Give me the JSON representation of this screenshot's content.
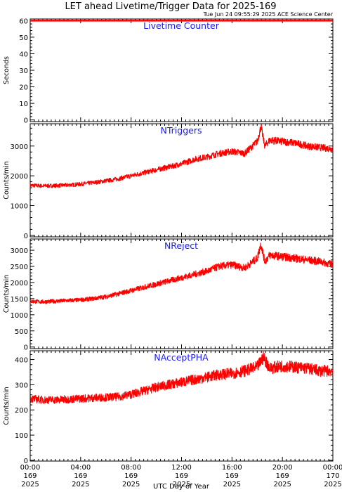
{
  "header": {
    "title": "LET ahead Livetime/Trigger Data for 2025-169",
    "timestamp": "Tue Jun 24 09:55:29 2025 ACE Science Center"
  },
  "x_axis": {
    "label": "UTC Day of Year",
    "ticks": [
      {
        "hour": 0,
        "lines": [
          "00:00",
          "169",
          "2025"
        ]
      },
      {
        "hour": 4,
        "lines": [
          "04:00",
          "169",
          "2025"
        ]
      },
      {
        "hour": 8,
        "lines": [
          "08:00",
          "169",
          "2025"
        ]
      },
      {
        "hour": 12,
        "lines": [
          "12:00",
          "169",
          "2025"
        ]
      },
      {
        "hour": 16,
        "lines": [
          "16:00",
          "169",
          "2025"
        ]
      },
      {
        "hour": 20,
        "lines": [
          "20:00",
          "169",
          "2025"
        ]
      },
      {
        "hour": 24,
        "lines": [
          "00:00",
          "170",
          "2025"
        ]
      }
    ]
  },
  "colors": {
    "series": "#ff0000",
    "panel_title": "#1a1aff",
    "axes": "#000000"
  },
  "chart_data": [
    {
      "type": "line",
      "title": "Livetime Counter",
      "ylabel": "Seconds",
      "ylim": [
        -1,
        61
      ],
      "yticks": [
        0,
        10,
        20,
        30,
        40,
        50,
        60
      ],
      "x": [
        0,
        24
      ],
      "values": [
        60,
        60
      ],
      "xlim": [
        0,
        24
      ]
    },
    {
      "type": "line",
      "title": "NTriggers",
      "ylabel": "Counts/min",
      "ylim": [
        -50,
        3750
      ],
      "yticks": [
        0,
        1000,
        2000,
        3000
      ],
      "xlim": [
        0,
        24
      ],
      "x": [
        0,
        1,
        2,
        3,
        4,
        5,
        6,
        7,
        8,
        9,
        10,
        11,
        12,
        13,
        14,
        15,
        16,
        17,
        17.5,
        18,
        18.3,
        18.6,
        19,
        20,
        21,
        22,
        23,
        24
      ],
      "values": [
        1680,
        1660,
        1670,
        1690,
        1720,
        1770,
        1830,
        1900,
        2000,
        2100,
        2200,
        2300,
        2400,
        2550,
        2630,
        2750,
        2820,
        2750,
        2950,
        3150,
        3650,
        3000,
        3200,
        3150,
        3100,
        3000,
        2950,
        2900
      ]
    },
    {
      "type": "line",
      "title": "NReject",
      "ylabel": "Counts/min",
      "ylim": [
        -50,
        3350
      ],
      "yticks": [
        0,
        500,
        1000,
        1500,
        2000,
        2500,
        3000
      ],
      "xlim": [
        0,
        24
      ],
      "x": [
        0,
        1,
        2,
        3,
        4,
        5,
        6,
        7,
        8,
        9,
        10,
        11,
        12,
        13,
        14,
        15,
        16,
        17,
        17.5,
        18,
        18.3,
        18.6,
        19,
        20,
        21,
        22,
        23,
        24
      ],
      "values": [
        1420,
        1400,
        1420,
        1440,
        1460,
        1500,
        1560,
        1650,
        1750,
        1850,
        1950,
        2050,
        2150,
        2250,
        2350,
        2500,
        2550,
        2450,
        2600,
        2750,
        3200,
        2650,
        2850,
        2800,
        2750,
        2700,
        2650,
        2550
      ]
    },
    {
      "type": "line",
      "title": "NAcceptPHA",
      "ylabel": "Counts/min",
      "ylim": [
        -3,
        435
      ],
      "yticks": [
        0,
        100,
        200,
        300,
        400
      ],
      "xlim": [
        0,
        24
      ],
      "x": [
        0,
        1,
        2,
        3,
        4,
        5,
        6,
        7,
        8,
        9,
        10,
        11,
        12,
        13,
        14,
        15,
        16,
        17,
        18,
        18.5,
        19,
        20,
        21,
        22,
        23,
        24
      ],
      "values": [
        245,
        240,
        240,
        242,
        245,
        248,
        250,
        252,
        262,
        275,
        290,
        300,
        310,
        320,
        330,
        340,
        345,
        355,
        370,
        410,
        365,
        375,
        370,
        365,
        355,
        355
      ]
    }
  ]
}
